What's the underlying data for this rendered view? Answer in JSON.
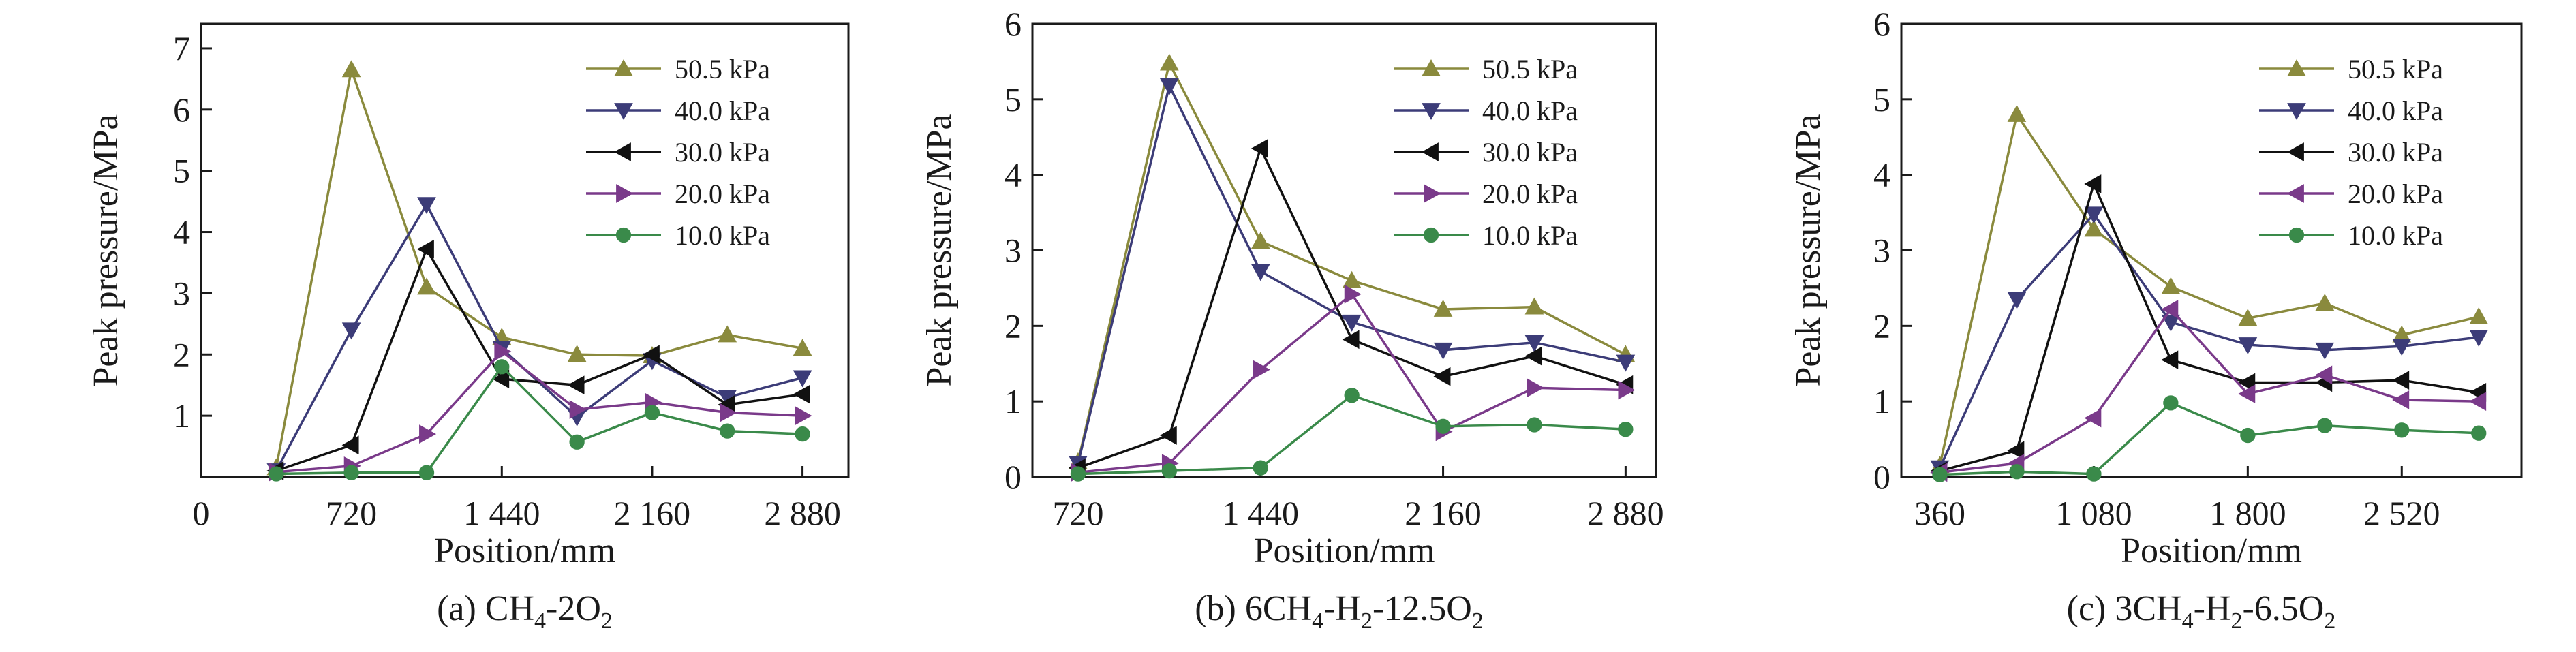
{
  "chart_data": [
    {
      "type": "line",
      "caption": "(a) CH4-2O2",
      "caption_parts": [
        {
          "text": "(a) CH",
          "sub": false
        },
        {
          "text": "4",
          "sub": true
        },
        {
          "text": "-2O",
          "sub": false
        },
        {
          "text": "2",
          "sub": true
        }
      ],
      "xlabel": "Position/mm",
      "ylabel": "Peak pressure/MPa",
      "xlim": [
        0,
        3100
      ],
      "ylim": [
        0,
        7.4
      ],
      "xticks": [
        0,
        720,
        1440,
        2160,
        2880
      ],
      "xtick_labels": [
        "0",
        "720",
        "1 440",
        "2 160",
        "2 880"
      ],
      "yticks": [
        1,
        2,
        3,
        4,
        5,
        6,
        7
      ],
      "ytick_labels": [
        "1",
        "2",
        "3",
        "4",
        "5",
        "6",
        "7"
      ],
      "legend_position": "top-right",
      "series": [
        {
          "name": "50.5 kPa",
          "color": "#8a8a3d",
          "marker": "triangle-up",
          "x": [
            360,
            720,
            1080,
            1440,
            1800,
            2160,
            2520,
            2880
          ],
          "y": [
            0.15,
            6.65,
            3.1,
            2.28,
            2.0,
            1.98,
            2.32,
            2.1
          ]
        },
        {
          "name": "40.0 kPa",
          "color": "#3c3c78",
          "marker": "triangle-down",
          "x": [
            360,
            720,
            1080,
            1440,
            1800,
            2160,
            2520,
            2880
          ],
          "y": [
            0.1,
            2.4,
            4.45,
            2.1,
            0.98,
            1.9,
            1.3,
            1.62
          ]
        },
        {
          "name": "30.0 kPa",
          "color": "#111111",
          "marker": "triangle-left",
          "x": [
            360,
            720,
            1080,
            1440,
            1800,
            2160,
            2520,
            2880
          ],
          "y": [
            0.1,
            0.52,
            3.72,
            1.6,
            1.5,
            2.0,
            1.18,
            1.35
          ]
        },
        {
          "name": "20.0 kPa",
          "color": "#7a3a8a",
          "marker": "triangle-right",
          "x": [
            360,
            720,
            1080,
            1440,
            1800,
            2160,
            2520,
            2880
          ],
          "y": [
            0.08,
            0.18,
            0.7,
            2.05,
            1.1,
            1.22,
            1.05,
            1.0
          ]
        },
        {
          "name": "10.0 kPa",
          "color": "#3a8a4a",
          "marker": "circle",
          "x": [
            360,
            720,
            1080,
            1440,
            1800,
            2160,
            2520,
            2880
          ],
          "y": [
            0.05,
            0.07,
            0.07,
            1.8,
            0.57,
            1.05,
            0.75,
            0.7
          ]
        }
      ]
    },
    {
      "type": "line",
      "caption": "(b) 6CH4-H2-12.5O2",
      "caption_parts": [
        {
          "text": "(b) 6CH",
          "sub": false
        },
        {
          "text": "4",
          "sub": true
        },
        {
          "text": "-H",
          "sub": false
        },
        {
          "text": "2",
          "sub": true
        },
        {
          "text": "-12.5O",
          "sub": false
        },
        {
          "text": "2",
          "sub": true
        }
      ],
      "xlabel": "Position/mm",
      "ylabel": "Peak pressure/MPa",
      "xlim": [
        540,
        3000
      ],
      "ylim": [
        0,
        6
      ],
      "xticks": [
        720,
        1440,
        2160,
        2880
      ],
      "xtick_labels": [
        "720",
        "1 440",
        "2 160",
        "2 880"
      ],
      "yticks": [
        0,
        1,
        2,
        3,
        4,
        5,
        6
      ],
      "ytick_labels": [
        "0",
        "1",
        "2",
        "3",
        "4",
        "5",
        "6"
      ],
      "legend_position": "top-right",
      "series": [
        {
          "name": "50.5 kPa",
          "color": "#8a8a3d",
          "marker": "triangle-up",
          "x": [
            720,
            1080,
            1440,
            1800,
            2160,
            2520,
            2880
          ],
          "y": [
            0.2,
            5.48,
            3.12,
            2.6,
            2.22,
            2.25,
            1.62
          ]
        },
        {
          "name": "40.0 kPa",
          "color": "#3c3c78",
          "marker": "triangle-down",
          "x": [
            720,
            1080,
            1440,
            1800,
            2160,
            2520,
            2880
          ],
          "y": [
            0.18,
            5.18,
            2.72,
            2.05,
            1.68,
            1.78,
            1.52
          ]
        },
        {
          "name": "30.0 kPa",
          "color": "#111111",
          "marker": "triangle-left",
          "x": [
            720,
            1080,
            1440,
            1800,
            2160,
            2520,
            2880
          ],
          "y": [
            0.12,
            0.55,
            4.35,
            1.82,
            1.33,
            1.6,
            1.22
          ]
        },
        {
          "name": "20.0 kPa",
          "color": "#7a3a8a",
          "marker": "triangle-right",
          "x": [
            720,
            1080,
            1440,
            1800,
            2160,
            2520,
            2880
          ],
          "y": [
            0.06,
            0.18,
            1.42,
            2.42,
            0.6,
            1.18,
            1.15
          ]
        },
        {
          "name": "10.0 kPa",
          "color": "#3a8a4a",
          "marker": "circle",
          "x": [
            720,
            1080,
            1440,
            1800,
            2160,
            2520,
            2880
          ],
          "y": [
            0.04,
            0.08,
            0.12,
            1.08,
            0.67,
            0.69,
            0.63
          ]
        }
      ]
    },
    {
      "type": "line",
      "caption": "(c) 3CH4-H2-6.5O2",
      "caption_parts": [
        {
          "text": "(c) 3CH",
          "sub": false
        },
        {
          "text": "4",
          "sub": true
        },
        {
          "text": "-H",
          "sub": false
        },
        {
          "text": "2",
          "sub": true
        },
        {
          "text": "-6.5O",
          "sub": false
        },
        {
          "text": "2",
          "sub": true
        }
      ],
      "xlabel": "Position/mm",
      "ylabel": "Peak pressure/MPa",
      "xlim": [
        180,
        3080
      ],
      "ylim": [
        0,
        6
      ],
      "xticks": [
        360,
        1080,
        1800,
        2520
      ],
      "xtick_labels": [
        "360",
        "1 080",
        "1 800",
        "2 520"
      ],
      "yticks": [
        0,
        1,
        2,
        3,
        4,
        5,
        6
      ],
      "ytick_labels": [
        "0",
        "1",
        "2",
        "3",
        "4",
        "5",
        "6"
      ],
      "legend_position": "top-right",
      "series": [
        {
          "name": "50.5 kPa",
          "color": "#8a8a3d",
          "marker": "triangle-up",
          "x": [
            360,
            720,
            1080,
            1440,
            1800,
            2160,
            2520,
            2880
          ],
          "y": [
            0.15,
            4.8,
            3.28,
            2.52,
            2.1,
            2.3,
            1.88,
            2.12
          ]
        },
        {
          "name": "40.0 kPa",
          "color": "#3c3c78",
          "marker": "triangle-down",
          "x": [
            360,
            720,
            1080,
            1440,
            1800,
            2160,
            2520,
            2880
          ],
          "y": [
            0.12,
            2.35,
            3.48,
            2.05,
            1.75,
            1.68,
            1.73,
            1.85
          ]
        },
        {
          "name": "30.0 kPa",
          "color": "#111111",
          "marker": "triangle-left",
          "x": [
            360,
            720,
            1080,
            1440,
            1800,
            2160,
            2520,
            2880
          ],
          "y": [
            0.08,
            0.35,
            3.88,
            1.55,
            1.25,
            1.25,
            1.28,
            1.12
          ]
        },
        {
          "name": "20.0 kPa",
          "color": "#7a3a8a",
          "marker": "triangle-left",
          "x": [
            360,
            720,
            1080,
            1440,
            1800,
            2160,
            2520,
            2880
          ],
          "y": [
            0.06,
            0.18,
            0.78,
            2.22,
            1.1,
            1.35,
            1.02,
            1.0
          ]
        },
        {
          "name": "10.0 kPa",
          "color": "#3a8a4a",
          "marker": "circle",
          "x": [
            360,
            720,
            1080,
            1440,
            1800,
            2160,
            2520,
            2880
          ],
          "y": [
            0.03,
            0.07,
            0.04,
            0.98,
            0.55,
            0.68,
            0.62,
            0.58
          ]
        }
      ]
    }
  ]
}
